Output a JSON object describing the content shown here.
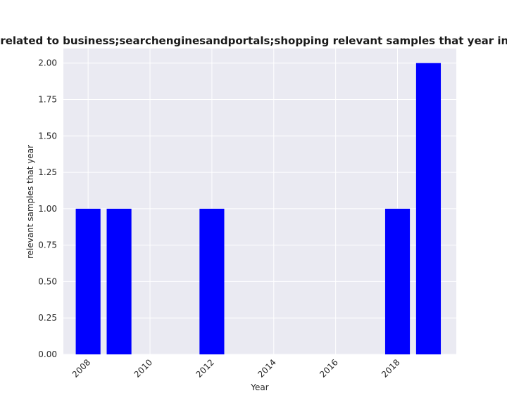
{
  "chart_data": {
    "type": "bar",
    "title": "are related to business;searchenginesandportals;shopping relevant samples that year in priva",
    "xlabel": "Year",
    "ylabel": "relevant samples that year",
    "x": [
      2008,
      2009,
      2012,
      2018,
      2019
    ],
    "values": [
      1,
      1,
      1,
      1,
      2
    ],
    "xlim": [
      2007.2,
      2019.9
    ],
    "ylim": [
      0,
      2.1
    ],
    "xticks": [
      2008,
      2010,
      2012,
      2014,
      2016,
      2018
    ],
    "yticks": [
      "0.00",
      "0.25",
      "0.50",
      "0.75",
      "1.00",
      "1.25",
      "1.50",
      "1.75",
      "2.00"
    ],
    "bar_color": "#0000ff",
    "plot_background": "#eaeaf2",
    "grid": true
  }
}
